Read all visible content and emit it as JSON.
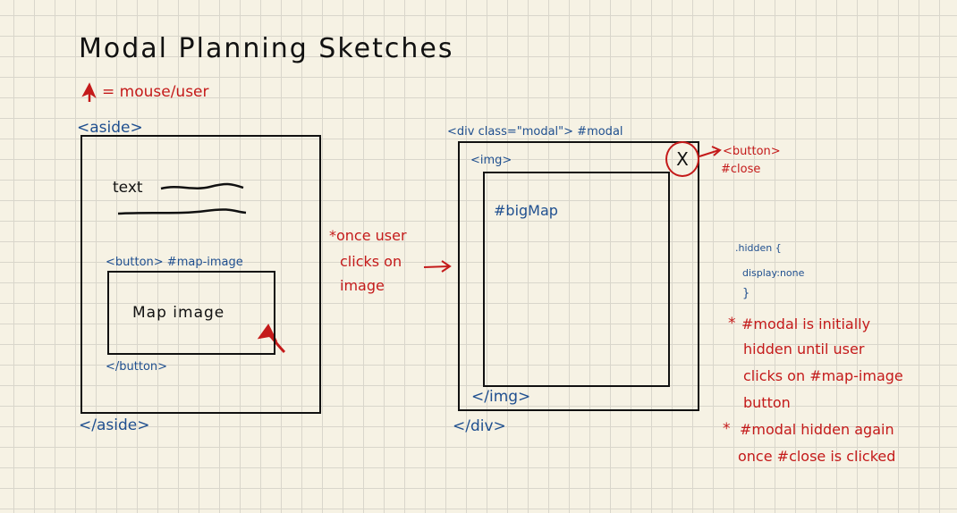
{
  "title": "Modal Planning Sketches",
  "legend": {
    "icon": "arrow-cursor-icon",
    "text": "= mouse/user"
  },
  "aside_sketch": {
    "open_tag": "<aside>",
    "close_tag": "</aside>",
    "text_label": "text",
    "button_open_tag": "<button> #map-image",
    "button_close_tag": "</button>",
    "button_content": "Map image"
  },
  "transition": {
    "lines": [
      "*once user",
      "clicks on",
      "image"
    ]
  },
  "modal_sketch": {
    "div_open_tag": "<div class=\"modal\"> #modal",
    "div_close_tag": "</div>",
    "img_open_tag": "<img>",
    "img_close_tag": "</img>",
    "img_id": "#bigMap",
    "close_symbol": "X",
    "close_button_label": "<button>",
    "close_button_id": "#close"
  },
  "css_note": {
    "lines": [
      ".hidden {",
      "display:none",
      "}"
    ]
  },
  "notes": [
    {
      "bullet": "*",
      "lines": [
        "#modal is initially",
        "hidden until user",
        "clicks on #map-image",
        "button"
      ]
    },
    {
      "bullet": "*",
      "lines": [
        "#modal hidden again",
        "once #close is clicked"
      ]
    }
  ],
  "colors": {
    "ink": "#111111",
    "blue": "#1f4f8f",
    "red": "#c41a1a",
    "paper": "#f6f2e4"
  }
}
